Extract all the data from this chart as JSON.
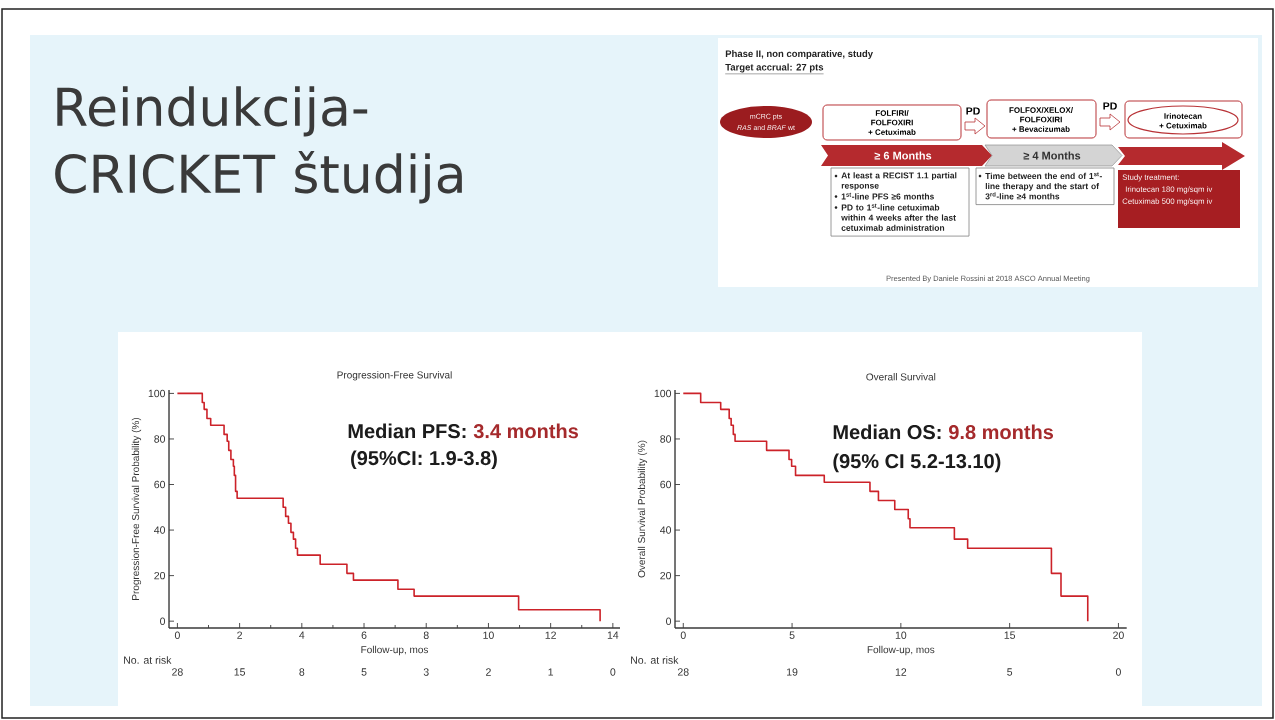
{
  "chart_data": [
    {
      "type": "other",
      "title": "Reindukcija-CRICKET študija"
    },
    {
      "type": "other",
      "title": "Phase II, non comparative, study",
      "subtitle": "Target accrual: 27 pts",
      "annotations": [
        "mCRC pts",
        "*RAS* and *BRAF* wt",
        "FOLFIRI/",
        "FOLFOXIRI",
        "+ Cetuximab",
        "PD",
        "FOLFOX/XELOX/",
        "FOLFOXIRI",
        "+ Bevacizumab",
        "PD",
        "Irinotecan",
        "+ Cetuximab",
        "≥ 6 Months",
        "≥ 4 Months",
        "At least a RECIST 1.1 partial response",
        "1$^{st}$-line PFS ≥6 months",
        "PD to 1$^{st}$-line cetuximab within 4 weeks after the last cetuximab administration",
        "Time between the end of 1$^{st}$-line therapy and the start of 3$^{rd}$-line ≥4 months",
        "Study treatment:",
        "Irinotecan 180 mg/sqm iv",
        "Cetuximab 500 mg/sqm iv",
        "Presented By Daniele Rossini at 2018 ASCO Annual Meeting"
      ]
    },
    {
      "type": "step",
      "title": "Progression-Free Survival",
      "xlabel": "Follow-up, mos",
      "ylabel": "Progression-Free Survival Probability (%)",
      "x": [
        0,
        0.8,
        0.86,
        0.95,
        1.07,
        1.5,
        1.6,
        1.65,
        1.72,
        1.8,
        1.83,
        1.87,
        1.92,
        3.4,
        3.48,
        3.57,
        3.65,
        3.73,
        3.8,
        3.86,
        4.59,
        5.45,
        5.66,
        7.09,
        7.61,
        10.97,
        13.59
      ],
      "series": [
        {
          "color": "#cc2229",
          "values": [
            100,
            96,
            93,
            89,
            86,
            82,
            79,
            75,
            71,
            68,
            64,
            57,
            54,
            50,
            46,
            43,
            39,
            36,
            32,
            29,
            25,
            21,
            18,
            14,
            11,
            5,
            0
          ]
        }
      ],
      "xlim": [
        -0.27,
        14.23
      ],
      "ylim": [
        -3,
        101.5
      ],
      "xticks": [
        0,
        {
          "value": 1,
          "label": null
        },
        2,
        {
          "value": 3,
          "label": null
        },
        4,
        {
          "value": 5,
          "label": null
        },
        6,
        {
          "value": 7,
          "label": null
        },
        8,
        {
          "value": 9,
          "label": null
        },
        10,
        {
          "value": 11,
          "label": null
        },
        12,
        {
          "value": 13,
          "label": null
        },
        14
      ],
      "yticks": [
        0,
        20,
        40,
        60,
        80,
        100
      ],
      "annotations": [
        "Median PFS:",
        "3.4 months",
        "(95%CI: 1.9-3.8)",
        "No. at risk",
        "28",
        "15",
        "8",
        "5",
        "3",
        "2",
        "1",
        "0"
      ]
    },
    {
      "type": "step",
      "title": "Overall Survival",
      "xlabel": "Follow-up, mos",
      "ylabel": "Overall Survival Probability (%)",
      "x": [
        0,
        0.8,
        1.72,
        2.11,
        2.2,
        2.3,
        2.38,
        3.83,
        4.86,
        4.98,
        5.16,
        6.48,
        8.58,
        8.97,
        9.72,
        10.34,
        10.42,
        12.46,
        13.07,
        16.92,
        17.36,
        18.59
      ],
      "series": [
        {
          "color": "#cc2229",
          "values": [
            100,
            96,
            93,
            89,
            86,
            82,
            79,
            75,
            71,
            68,
            64,
            61,
            57,
            53,
            49,
            45,
            41,
            36,
            32,
            21,
            11,
            0
          ]
        }
      ],
      "xlim": [
        -0.38,
        20.38
      ],
      "ylim": [
        -3,
        101.5
      ],
      "xticks": [
        0,
        5,
        10,
        15,
        20
      ],
      "yticks": [
        0,
        20,
        40,
        60,
        80,
        100
      ],
      "annotations": [
        "Median OS:",
        "9.8 months",
        "(95% CI 5.2-13.10)",
        "No. at risk",
        "28",
        "19",
        "12",
        "5",
        "0"
      ]
    }
  ]
}
